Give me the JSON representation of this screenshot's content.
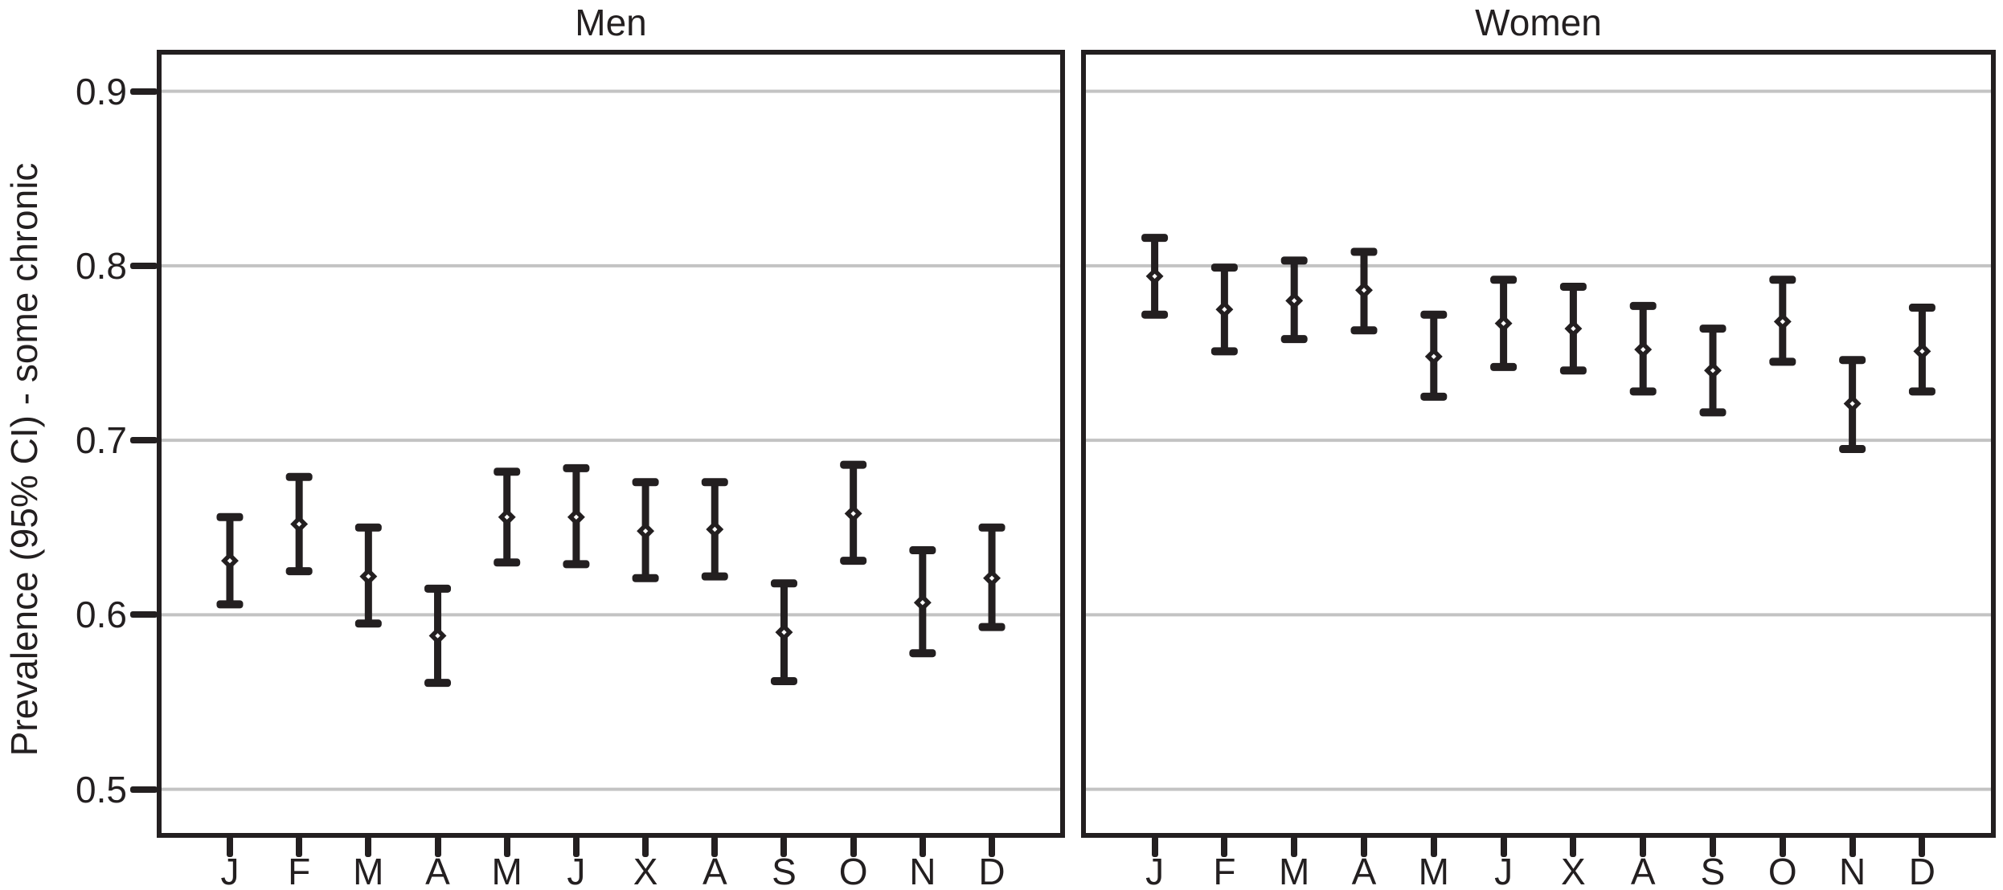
{
  "figure": {
    "ylabel": "Prevalence (95% CI) - some chronic"
  },
  "chart_data": {
    "type": "errorbar",
    "ylabel": "Prevalence (95% CI) - some chronic",
    "ylim": [
      0.475,
      0.921
    ],
    "yticks": [
      0.9,
      0.8,
      0.7,
      0.6,
      0.5
    ],
    "ytick_labels": [
      "0.9",
      "0.8",
      "0.7",
      "0.6",
      "0.5"
    ],
    "grid": "horizontal",
    "legend": "none",
    "marker": "open-diamond",
    "categories": [
      "J",
      "F",
      "M",
      "A",
      "M",
      "J",
      "X",
      "A",
      "S",
      "O",
      "N",
      "D"
    ],
    "facets": [
      {
        "title": "Men",
        "mean": [
          0.631,
          0.652,
          0.622,
          0.588,
          0.656,
          0.656,
          0.648,
          0.649,
          0.59,
          0.658,
          0.607,
          0.621
        ],
        "ci_low": [
          0.606,
          0.625,
          0.595,
          0.561,
          0.63,
          0.629,
          0.621,
          0.622,
          0.562,
          0.631,
          0.578,
          0.593
        ],
        "ci_high": [
          0.656,
          0.679,
          0.65,
          0.615,
          0.682,
          0.684,
          0.676,
          0.676,
          0.618,
          0.686,
          0.637,
          0.65
        ]
      },
      {
        "title": "Women",
        "mean": [
          0.794,
          0.775,
          0.78,
          0.786,
          0.748,
          0.767,
          0.764,
          0.752,
          0.74,
          0.768,
          0.721,
          0.751
        ],
        "ci_low": [
          0.772,
          0.751,
          0.758,
          0.763,
          0.725,
          0.742,
          0.74,
          0.728,
          0.716,
          0.745,
          0.695,
          0.728
        ],
        "ci_high": [
          0.816,
          0.799,
          0.803,
          0.808,
          0.772,
          0.792,
          0.788,
          0.777,
          0.764,
          0.792,
          0.746,
          0.776
        ]
      }
    ],
    "colors": {
      "ink": "#231f20",
      "grid": "#c3c3c3",
      "background": "#ffffff"
    }
  }
}
